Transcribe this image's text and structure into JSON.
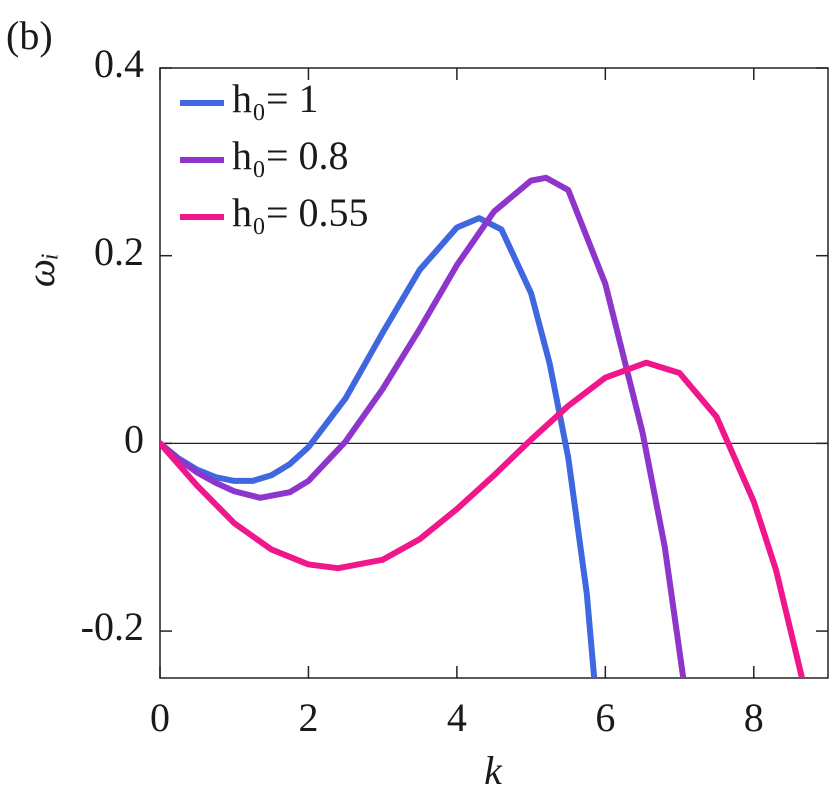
{
  "chart_data": {
    "type": "line",
    "annotation": "(b)",
    "xlabel": "k",
    "ylabel": "ωᵢ",
    "xlim": [
      0,
      9
    ],
    "xticks": [
      0,
      2,
      4,
      6,
      8
    ],
    "ylim": [
      -0.25,
      0.4
    ],
    "yticks": [
      -0.2,
      0,
      0.2,
      0.4
    ],
    "hlines": [
      0
    ],
    "legend": "upper left",
    "series": [
      {
        "name": "h₀= 1",
        "color": "#3f68e0",
        "x": [
          0,
          0.25,
          0.5,
          0.75,
          1,
          1.25,
          1.5,
          1.75,
          2,
          2.5,
          3,
          3.5,
          4,
          4.3,
          4.6,
          5,
          5.25,
          5.5,
          5.75,
          5.85
        ],
        "values": [
          0,
          -0.016,
          -0.028,
          -0.036,
          -0.04,
          -0.04,
          -0.034,
          -0.022,
          -0.004,
          0.048,
          0.118,
          0.185,
          0.23,
          0.24,
          0.228,
          0.16,
          0.085,
          -0.015,
          -0.16,
          -0.25
        ]
      },
      {
        "name": "h₀= 0.8",
        "color": "#8e35cc",
        "x": [
          0,
          0.25,
          0.5,
          0.75,
          1,
          1.35,
          1.75,
          2,
          2.5,
          3,
          3.5,
          4,
          4.5,
          5,
          5.2,
          5.5,
          6,
          6.5,
          6.8,
          7.05
        ],
        "values": [
          0,
          -0.017,
          -0.031,
          -0.042,
          -0.051,
          -0.058,
          -0.052,
          -0.04,
          0.002,
          0.058,
          0.122,
          0.19,
          0.247,
          0.28,
          0.283,
          0.27,
          0.17,
          0.012,
          -0.11,
          -0.25
        ]
      },
      {
        "name": "h₀= 0.55",
        "color": "#f0168c",
        "x": [
          0,
          0.5,
          1,
          1.5,
          2,
          2.4,
          3,
          3.5,
          4,
          4.5,
          5,
          5.5,
          6,
          6.55,
          7,
          7.5,
          8,
          8.3,
          8.65
        ],
        "values": [
          0,
          -0.045,
          -0.085,
          -0.113,
          -0.129,
          -0.133,
          -0.124,
          -0.102,
          -0.07,
          -0.034,
          0.004,
          0.04,
          0.07,
          0.086,
          0.075,
          0.028,
          -0.062,
          -0.135,
          -0.25
        ]
      }
    ]
  }
}
